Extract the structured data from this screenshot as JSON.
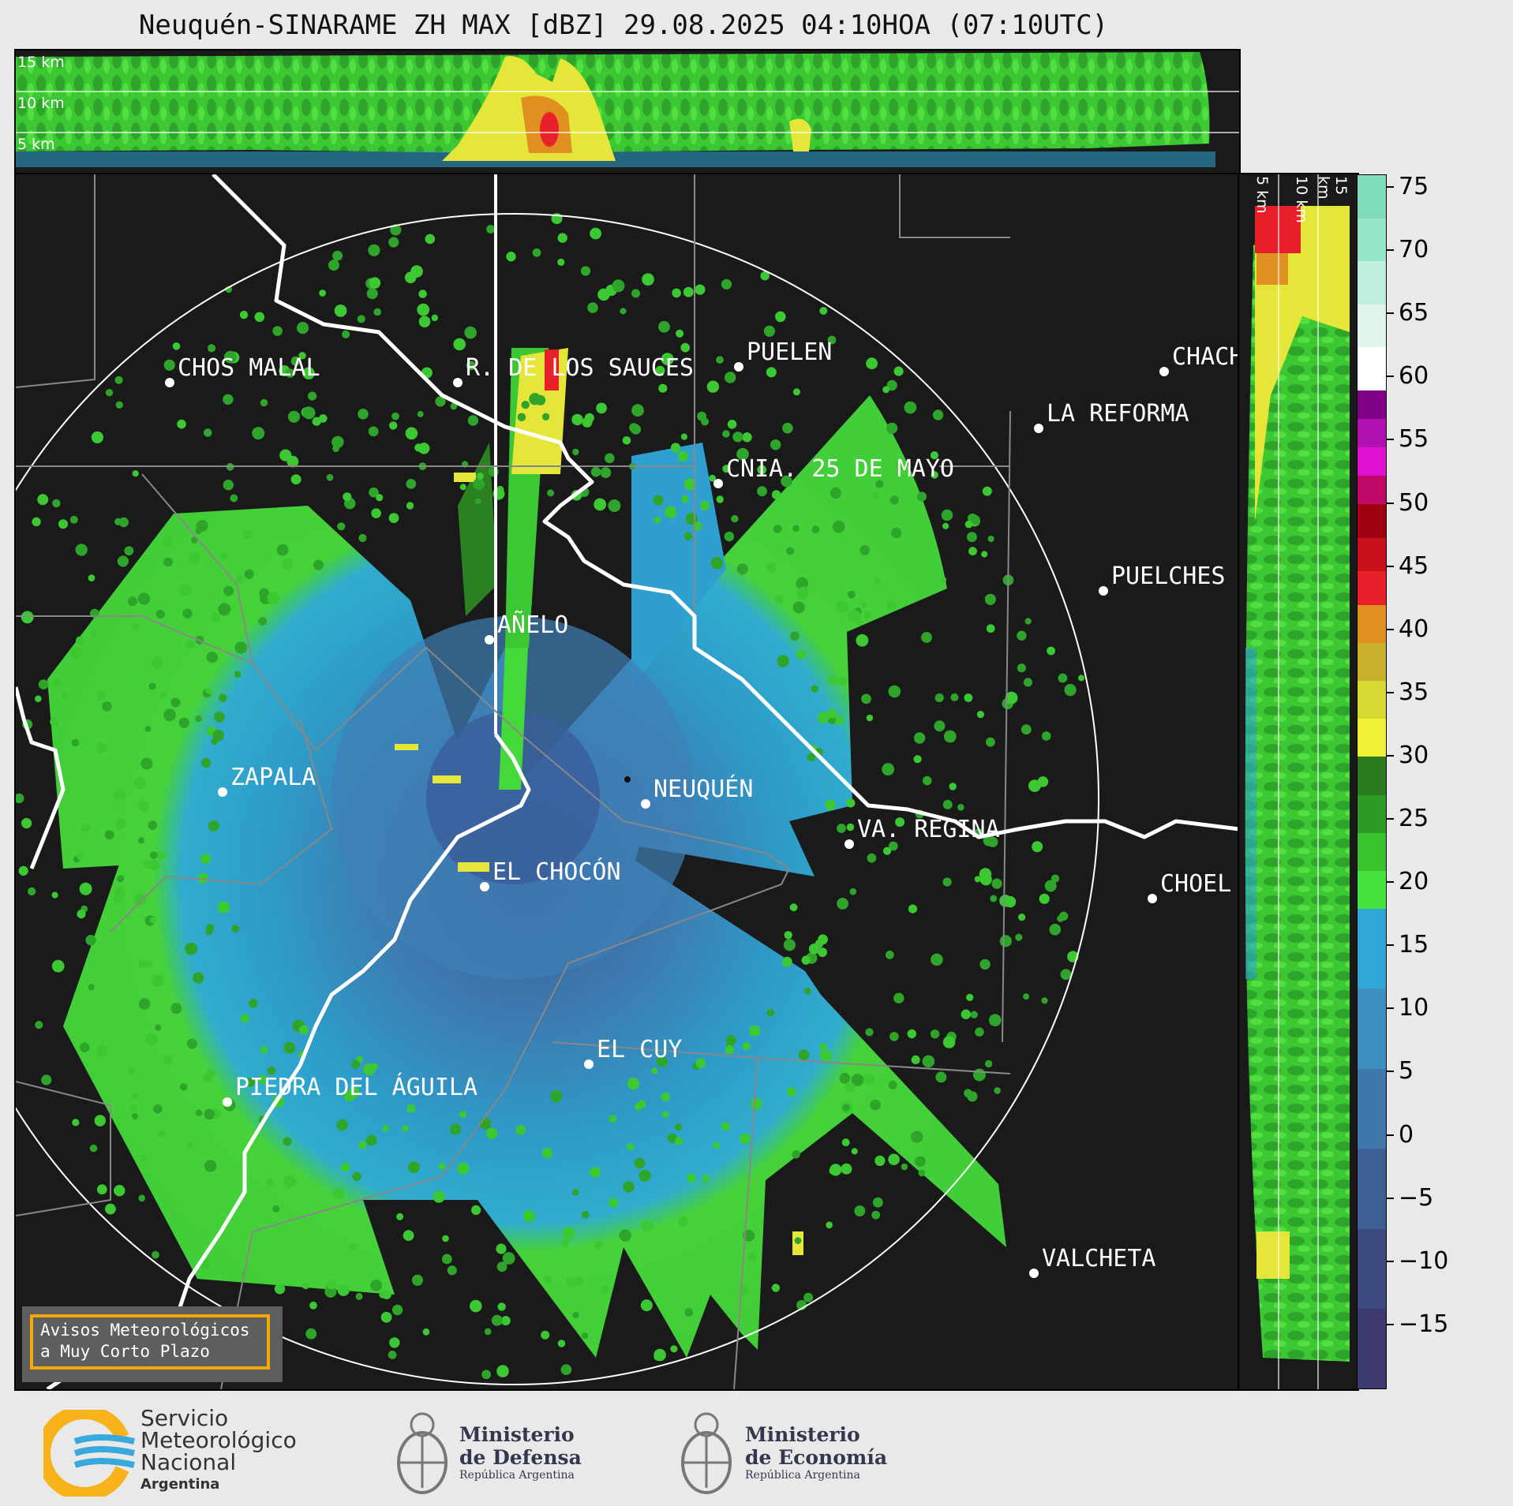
{
  "title": "Neuquén-SINARAME ZH MAX [dBZ] 29.08.2025 04:10HOA (07:10UTC)",
  "top_cross_section": {
    "altitude_labels": [
      "15 km",
      "10 km",
      "5 km"
    ]
  },
  "right_cross_section": {
    "altitude_labels": [
      "5 km",
      "10 km",
      "15 km"
    ]
  },
  "map": {
    "cities": [
      {
        "name": "CHOS MALAL"
      },
      {
        "name": "R. DE LOS SAUCES"
      },
      {
        "name": "PUELEN"
      },
      {
        "name": "CHACH"
      },
      {
        "name": "LA REFORMA"
      },
      {
        "name": "CNIA. 25 DE MAYO"
      },
      {
        "name": "PUELCHES"
      },
      {
        "name": "AÑELO"
      },
      {
        "name": "ZAPALA"
      },
      {
        "name": "NEUQUÉN"
      },
      {
        "name": "VA. REGINA"
      },
      {
        "name": "EL CHOCÓN"
      },
      {
        "name": "CHOEL"
      },
      {
        "name": "EL CUY"
      },
      {
        "name": "PIEDRA DEL ÁGUILA"
      },
      {
        "name": "VALCHETA"
      }
    ]
  },
  "colorbar": {
    "unit": "dBZ",
    "ticks": [
      "75",
      "70",
      "65",
      "60",
      "55",
      "50",
      "45",
      "40",
      "35",
      "30",
      "25",
      "20",
      "15",
      "10",
      "5",
      "0",
      "−5",
      "−10",
      "−15"
    ],
    "range": [
      -20,
      76
    ],
    "bands": [
      {
        "from": -20,
        "to": 18,
        "colors": [
          "#3c3a6e",
          "#3d4a80",
          "#3e5f94",
          "#3f77aa",
          "#3f8fbe",
          "#2fa6d4"
        ]
      },
      {
        "from": 18,
        "to": 30,
        "colors": [
          "#44e23a",
          "#37c22e",
          "#2e9a24",
          "#2a7a1e"
        ]
      },
      {
        "from": 30,
        "to": 42,
        "colors": [
          "#f0f036",
          "#d8d832",
          "#c8b02c",
          "#e09020"
        ]
      },
      {
        "from": 42,
        "to": 50,
        "colors": [
          "#e8202a",
          "#c8101a",
          "#a00010"
        ]
      },
      {
        "from": 50,
        "to": 59,
        "colors": [
          "#c00868",
          "#e010d0",
          "#b010b0",
          "#800088"
        ]
      },
      {
        "from": 59,
        "to": 76,
        "colors": [
          "#ffffff",
          "#dff5ea",
          "#bfeedd",
          "#98e6c8",
          "#80dcb8"
        ]
      }
    ]
  },
  "notice": {
    "line1": "Avisos Meteorológicos",
    "line2": "a Muy Corto Plazo"
  },
  "logos": {
    "smn": {
      "line1": "Servicio",
      "line2": "Meteorológico",
      "line3": "Nacional",
      "line4": "Argentina"
    },
    "defensa": {
      "line1": "Ministerio",
      "line2": "de Defensa",
      "line3": "República Argentina"
    },
    "economia": {
      "line1": "Ministerio",
      "line2": "de Economía",
      "line3": "República Argentina"
    }
  }
}
